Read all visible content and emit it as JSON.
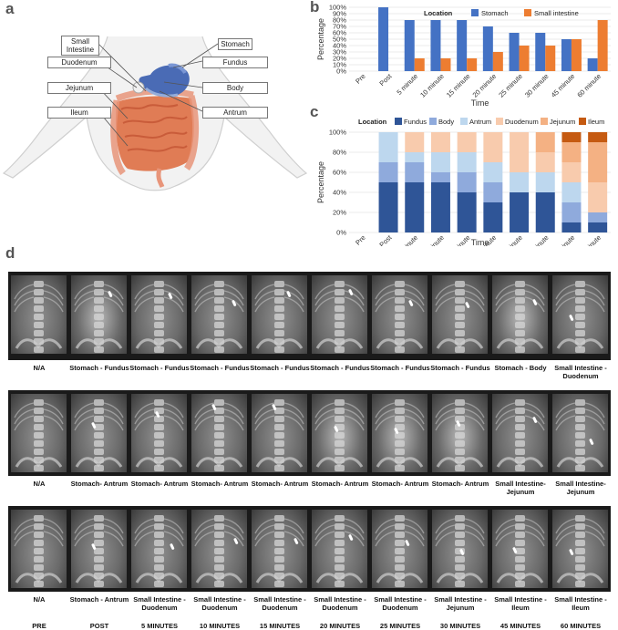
{
  "panels": {
    "a": "a",
    "b": "b",
    "c": "c",
    "d": "d"
  },
  "anatomy": {
    "left_labels": [
      {
        "key": "small_intestine",
        "text": "Small Intestine"
      },
      {
        "key": "duodenum",
        "text": "Duodenum"
      },
      {
        "key": "jejunum",
        "text": "Jejunum"
      },
      {
        "key": "ileum",
        "text": "Ileum"
      }
    ],
    "right_labels": [
      {
        "key": "stomach",
        "text": "Stomach"
      },
      {
        "key": "fundus",
        "text": "Fundus"
      },
      {
        "key": "body",
        "text": "Body"
      },
      {
        "key": "antrum",
        "text": "Antrum"
      }
    ]
  },
  "chart_data": [
    {
      "type": "bar",
      "panel": "b",
      "categories": [
        "Pre",
        "Post",
        "5 minute",
        "10 minute",
        "15 minute",
        "20 minute",
        "25 minute",
        "30 minute",
        "45 minute",
        "60 minute"
      ],
      "legend_title": "Location",
      "series": [
        {
          "name": "Stomach",
          "color": "#4472c4",
          "values": [
            0,
            100,
            80,
            80,
            80,
            70,
            60,
            60,
            50,
            20
          ]
        },
        {
          "name": "Small intestine",
          "color": "#ed7d31",
          "values": [
            0,
            0,
            20,
            20,
            20,
            30,
            40,
            40,
            50,
            80
          ]
        }
      ],
      "xlabel": "Time",
      "ylabel": "Percentage",
      "ylim": [
        0,
        100
      ],
      "yticks": [
        "0%",
        "10%",
        "20%",
        "30%",
        "40%",
        "50%",
        "60%",
        "70%",
        "80%",
        "90%",
        "100%"
      ]
    },
    {
      "type": "bar",
      "stacked": true,
      "panel": "c",
      "categories": [
        "Pre",
        "Post",
        "5 minute",
        "10 minute",
        "15 minute",
        "20 minute",
        "25 minute",
        "30 minute",
        "45 minute",
        "60 minute"
      ],
      "legend_title": "Location",
      "series": [
        {
          "name": "Fundus",
          "color": "#2f5597",
          "values": [
            0,
            50,
            50,
            50,
            40,
            30,
            40,
            40,
            10,
            10
          ]
        },
        {
          "name": "Body",
          "color": "#8faadc",
          "values": [
            0,
            20,
            20,
            10,
            20,
            20,
            0,
            0,
            20,
            10
          ]
        },
        {
          "name": "Antrum",
          "color": "#bdd7ee",
          "values": [
            0,
            30,
            10,
            20,
            20,
            20,
            20,
            20,
            20,
            0
          ]
        },
        {
          "name": "Duodenum",
          "color": "#f8cbad",
          "values": [
            0,
            0,
            20,
            20,
            20,
            30,
            40,
            20,
            20,
            30
          ]
        },
        {
          "name": "Jejunum",
          "color": "#f4b183",
          "values": [
            0,
            0,
            0,
            0,
            0,
            0,
            0,
            20,
            20,
            40
          ]
        },
        {
          "name": "Ileum",
          "color": "#c55a11",
          "values": [
            0,
            0,
            0,
            0,
            0,
            0,
            0,
            0,
            10,
            10
          ]
        }
      ],
      "xlabel": "Time",
      "ylabel": "Percentage",
      "ylim": [
        0,
        100
      ],
      "yticks": [
        "0%",
        "20%",
        "40%",
        "60%",
        "80%",
        "100%"
      ]
    }
  ],
  "xray_rows": [
    {
      "captions": [
        "N/A",
        "Stomach - Fundus",
        "Stomach - Fundus",
        "Stomach - Fundus",
        "Stomach - Fundus",
        "Stomach - Fundus",
        "Stomach - Fundus",
        "Stomach - Fundus",
        "Stomach - Body",
        "Small Intestine - Duodenum"
      ],
      "bright": [
        false,
        true,
        false,
        false,
        false,
        false,
        false,
        false,
        true,
        false
      ]
    },
    {
      "captions": [
        "N/A",
        "Stomach- Antrum",
        "Stomach- Antrum",
        "Stomach- Antrum",
        "Stomach- Antrum",
        "Stomach- Antrum",
        "Stomach- Antrum",
        "Stomach- Antrum",
        "Small Intestine- Jejunum",
        "Small Intestine- Jejunum"
      ],
      "bright": [
        false,
        false,
        false,
        false,
        false,
        true,
        true,
        true,
        false,
        false
      ]
    },
    {
      "captions": [
        "N/A",
        "Stomach - Antrum",
        "Small Intestine - Duodenum",
        "Small Intestine - Duodenum",
        "Small Intestine - Duodenum",
        "Small Intestine - Duodenum",
        "Small Intestine - Duodenum",
        "Small Intestine - Jejunum",
        "Small Intestine - Ileum",
        "Small Intestine - Ileum"
      ],
      "bright": [
        false,
        false,
        false,
        false,
        false,
        false,
        false,
        false,
        false,
        false
      ]
    }
  ],
  "time_labels": [
    "PRE",
    "POST",
    "5 MINUTES",
    "10 MINUTES",
    "15 MINUTES",
    "20 MINUTES",
    "25 MINUTES",
    "30 MINUTES",
    "45 MINUTES",
    "60 MINUTES"
  ]
}
